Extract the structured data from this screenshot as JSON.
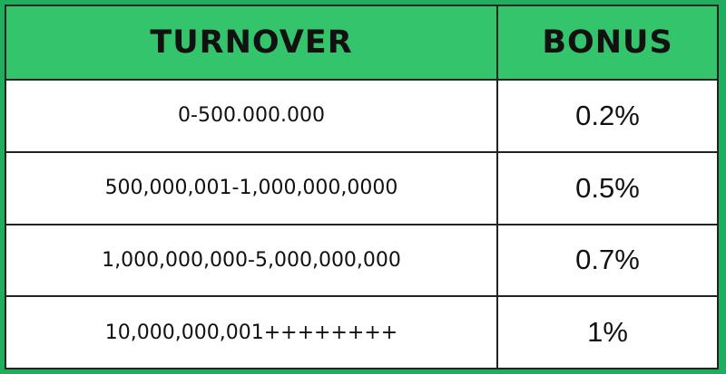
{
  "headers": {
    "turnover": "TURNOVER",
    "bonus": "BONUS"
  },
  "rows": [
    {
      "turnover": "0-500.000.000",
      "bonus": "0.2%"
    },
    {
      "turnover": "500,000,001-1,000,000,0000",
      "bonus": "0.5%"
    },
    {
      "turnover": "1,000,000,000-5,000,000,000",
      "bonus": "0.7%"
    },
    {
      "turnover": "10,000,000,001++++++++",
      "bonus": "1%"
    }
  ],
  "colors": {
    "border": "#1fae5e",
    "header_bg": "#33c46c"
  }
}
